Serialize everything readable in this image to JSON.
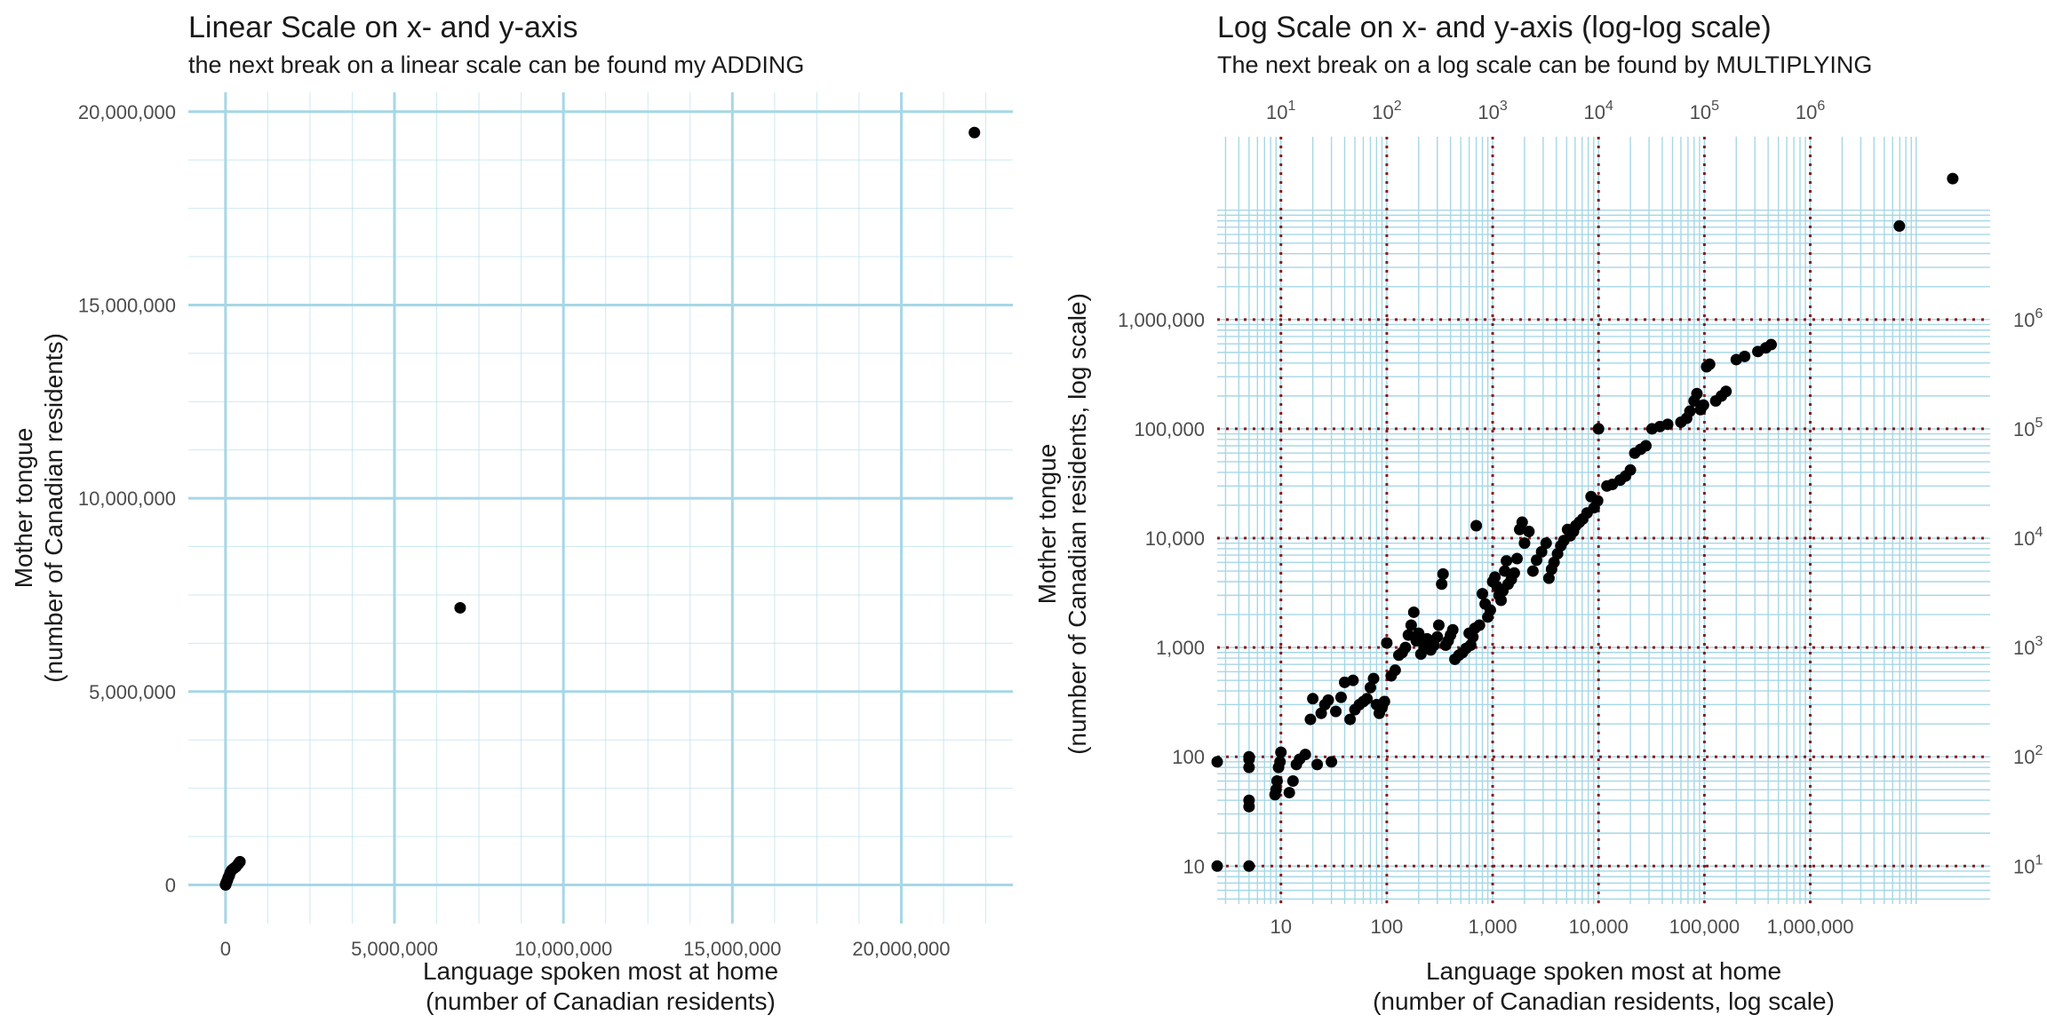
{
  "chart_data": [
    {
      "type": "scatter",
      "title": "Linear Scale on x- and y-axis",
      "subtitle": "the next break on a linear scale can be found my ADDING",
      "xlabel": [
        "Language spoken most at home",
        "(number of Canadian residents)"
      ],
      "ylabel": [
        "Mother tongue",
        "(number of Canadian residents)"
      ],
      "xscale": "linear",
      "yscale": "linear",
      "xlim": [
        -1100000,
        23300000
      ],
      "ylim": [
        -1000000,
        20500000
      ],
      "x_ticks": [
        0,
        5000000,
        10000000,
        15000000,
        20000000
      ],
      "x_tick_labels": [
        "0",
        "5,000,000",
        "10,000,000",
        "15,000,000",
        "20,000,000"
      ],
      "y_ticks": [
        0,
        5000000,
        10000000,
        15000000,
        20000000
      ],
      "y_tick_labels": [
        "0",
        "5,000,000",
        "10,000,000",
        "15,000,000",
        "20,000,000"
      ],
      "grid_color": "#a6d7e6",
      "point_color": "#000000",
      "points": [
        [
          22162865,
          19460850
        ],
        [
          6943800,
          7166700
        ],
        [
          427000,
          600000
        ],
        [
          380000,
          545000
        ],
        [
          310000,
          470000
        ],
        [
          250000,
          430000
        ],
        [
          180000,
          380000
        ],
        [
          140000,
          320000
        ],
        [
          110000,
          240000
        ],
        [
          80000,
          190000
        ],
        [
          60000,
          130000
        ],
        [
          40000,
          90000
        ],
        [
          20000,
          50000
        ],
        [
          10000,
          20000
        ],
        [
          5000,
          5000
        ],
        [
          2000,
          2000
        ],
        [
          1000,
          1000
        ]
      ]
    },
    {
      "type": "scatter",
      "title": "Log Scale on x- and y-axis (log-log scale)",
      "subtitle": "The next break on a log scale can be found by MULTIPLYING",
      "xlabel": [
        "Language spoken most at home",
        "(number of Canadian residents, log scale)"
      ],
      "ylabel": [
        "Mother tongue",
        "(number of Canadian residents, log scale)"
      ],
      "xscale": "log10",
      "yscale": "log10",
      "xlim": [
        2.5,
        50000000
      ],
      "ylim": [
        4.5,
        47000000
      ],
      "x_ticks": [
        10,
        100,
        1000,
        10000,
        100000,
        1000000
      ],
      "x_tick_labels": [
        "10",
        "100",
        "1,000",
        "10,000",
        "100,000",
        "1,000,000"
      ],
      "x_top_tick_labels": [
        "10",
        "10",
        "10",
        "10",
        "10",
        "10"
      ],
      "x_top_tick_exponents": [
        "1",
        "2",
        "3",
        "4",
        "5",
        "6"
      ],
      "y_ticks": [
        10,
        100,
        1000,
        10000,
        100000,
        1000000
      ],
      "y_tick_labels": [
        "10",
        "100",
        "1,000",
        "10,000",
        "100,000",
        "1,000,000"
      ],
      "y_right_tick_labels": [
        "10",
        "10",
        "10",
        "10",
        "10",
        "10"
      ],
      "y_right_tick_exponents": [
        "1",
        "2",
        "3",
        "4",
        "5",
        "6"
      ],
      "grid_color": "#a6d7e6",
      "break_line_color": "#8b1a1a",
      "point_color": "#000000",
      "points": [
        [
          22162865,
          19460850
        ],
        [
          6943800,
          7166700
        ],
        [
          427000,
          590000
        ],
        [
          380000,
          550000
        ],
        [
          320000,
          510000
        ],
        [
          240000,
          460000
        ],
        [
          200000,
          430000
        ],
        [
          160000,
          220000
        ],
        [
          145000,
          200000
        ],
        [
          128000,
          180000
        ],
        [
          112000,
          390000
        ],
        [
          105000,
          370000
        ],
        [
          98000,
          165000
        ],
        [
          92000,
          150000
        ],
        [
          85000,
          210000
        ],
        [
          80000,
          180000
        ],
        [
          73000,
          145000
        ],
        [
          68000,
          125000
        ],
        [
          60000,
          115000
        ],
        [
          45000,
          110000
        ],
        [
          38000,
          105000
        ],
        [
          32000,
          100000
        ],
        [
          28000,
          70000
        ],
        [
          25000,
          65000
        ],
        [
          22000,
          60000
        ],
        [
          20000,
          42000
        ],
        [
          18000,
          37000
        ],
        [
          16000,
          34000
        ],
        [
          13500,
          31000
        ],
        [
          12000,
          30000
        ],
        [
          10000,
          100000
        ],
        [
          9800,
          22000
        ],
        [
          9100,
          19000
        ],
        [
          8500,
          24000
        ],
        [
          7800,
          17000
        ],
        [
          7100,
          15000
        ],
        [
          6600,
          14000
        ],
        [
          6100,
          13000
        ],
        [
          5800,
          11500
        ],
        [
          5400,
          10500
        ],
        [
          5100,
          12000
        ],
        [
          4700,
          9500
        ],
        [
          4400,
          8500
        ],
        [
          4100,
          7200
        ],
        [
          3800,
          6000
        ],
        [
          3600,
          5200
        ],
        [
          3400,
          4300
        ],
        [
          3200,
          9000
        ],
        [
          2900,
          7500
        ],
        [
          2600,
          6300
        ],
        [
          2400,
          5000
        ],
        [
          2200,
          11500
        ],
        [
          2000,
          9000
        ],
        [
          1900,
          14000
        ],
        [
          1800,
          12000
        ],
        [
          1700,
          6500
        ],
        [
          1600,
          4800
        ],
        [
          1500,
          4200
        ],
        [
          1400,
          3800
        ],
        [
          1350,
          6200
        ],
        [
          1300,
          5000
        ],
        [
          1250,
          3300
        ],
        [
          1200,
          2700
        ],
        [
          1150,
          3000
        ],
        [
          1100,
          3600
        ],
        [
          1050,
          4400
        ],
        [
          1000,
          4000
        ],
        [
          950,
          2200
        ],
        [
          900,
          1900
        ],
        [
          850,
          2500
        ],
        [
          800,
          3100
        ],
        [
          750,
          1600
        ],
        [
          700,
          13000
        ],
        [
          680,
          1500
        ],
        [
          650,
          1250
        ],
        [
          620,
          1050
        ],
        [
          600,
          1350
        ],
        [
          560,
          980
        ],
        [
          520,
          900
        ],
        [
          480,
          850
        ],
        [
          440,
          780
        ],
        [
          420,
          1450
        ],
        [
          400,
          1300
        ],
        [
          380,
          1150
        ],
        [
          360,
          1050
        ],
        [
          340,
          4700
        ],
        [
          330,
          3800
        ],
        [
          310,
          1600
        ],
        [
          300,
          1250
        ],
        [
          280,
          1050
        ],
        [
          260,
          950
        ],
        [
          240,
          1200
        ],
        [
          225,
          1000
        ],
        [
          210,
          870
        ],
        [
          200,
          1350
        ],
        [
          190,
          1150
        ],
        [
          180,
          2100
        ],
        [
          170,
          1600
        ],
        [
          160,
          1300
        ],
        [
          150,
          1000
        ],
        [
          140,
          900
        ],
        [
          130,
          850
        ],
        [
          120,
          620
        ],
        [
          110,
          550
        ],
        [
          100,
          1100
        ],
        [
          95,
          320
        ],
        [
          90,
          280
        ],
        [
          85,
          250
        ],
        [
          80,
          300
        ],
        [
          75,
          520
        ],
        [
          70,
          430
        ],
        [
          65,
          340
        ],
        [
          60,
          320
        ],
        [
          55,
          300
        ],
        [
          50,
          270
        ],
        [
          48,
          500
        ],
        [
          45,
          220
        ],
        [
          40,
          480
        ],
        [
          37,
          350
        ],
        [
          33,
          260
        ],
        [
          30,
          90
        ],
        [
          28,
          330
        ],
        [
          26,
          300
        ],
        [
          24,
          250
        ],
        [
          22,
          85
        ],
        [
          20,
          340
        ],
        [
          19,
          220
        ],
        [
          17,
          105
        ],
        [
          15,
          95
        ],
        [
          14,
          85
        ],
        [
          13,
          60
        ],
        [
          12,
          47
        ],
        [
          10,
          110
        ],
        [
          9.8,
          90
        ],
        [
          9.5,
          80
        ],
        [
          9.2,
          60
        ],
        [
          9,
          50
        ],
        [
          8.8,
          45
        ],
        [
          5,
          100
        ],
        [
          5,
          95
        ],
        [
          5,
          80
        ],
        [
          5,
          40
        ],
        [
          5,
          35
        ],
        [
          5,
          10
        ],
        [
          2.5,
          90
        ],
        [
          2.5,
          10
        ]
      ]
    }
  ]
}
